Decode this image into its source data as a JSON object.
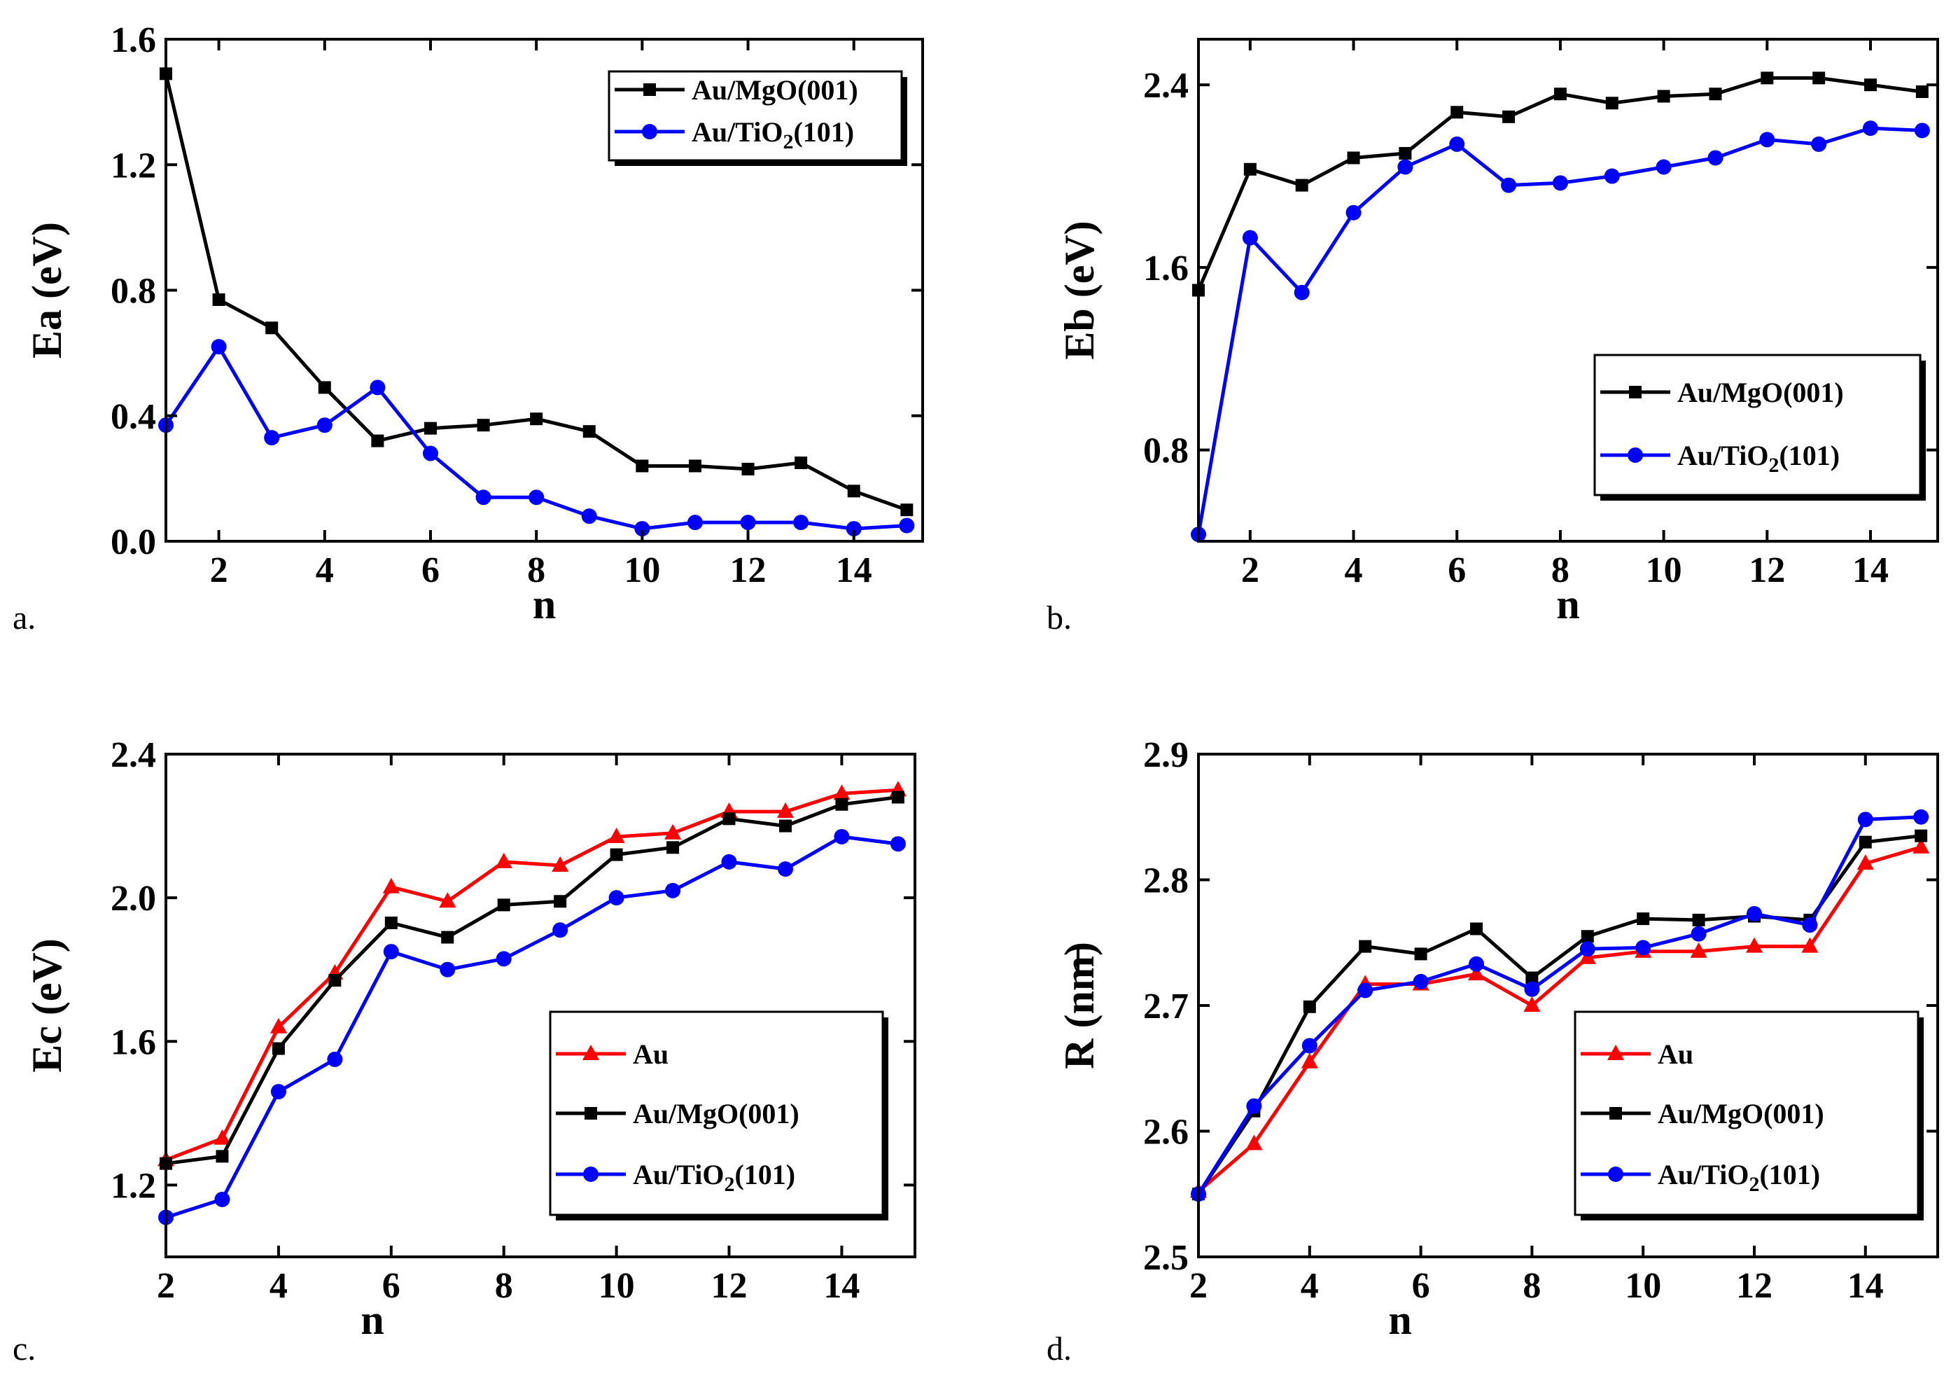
{
  "chart_data": [
    {
      "type": "line",
      "panel_label": "a.",
      "xlabel": "n",
      "ylabel": "Ea (eV)",
      "xlim": [
        1,
        15.3
      ],
      "ylim": [
        0,
        1.6
      ],
      "xticks": [
        2,
        4,
        6,
        8,
        10,
        12,
        14
      ],
      "xtick_labels": [
        "2",
        "4",
        "6",
        "8",
        "10",
        "12",
        "14"
      ],
      "yticks": [
        0.0,
        0.4,
        0.8,
        1.2,
        1.6
      ],
      "ytick_labels": [
        "0.0",
        "0.4",
        "0.8",
        "1.2",
        "1.6"
      ],
      "legend_position": "top-right",
      "series": [
        {
          "name": "Au/MgO(001)",
          "label_main": "Au/MgO(001)",
          "color": "#000000",
          "marker": "square",
          "x": [
            1,
            2,
            3,
            4,
            5,
            6,
            7,
            8,
            9,
            10,
            11,
            12,
            13,
            14,
            15
          ],
          "values": [
            1.49,
            0.77,
            0.68,
            0.49,
            0.32,
            0.36,
            0.37,
            0.39,
            0.35,
            0.24,
            0.24,
            0.23,
            0.25,
            0.16,
            0.1
          ]
        },
        {
          "name": "Au/TiO2(101)",
          "label_main": "Au/TiO",
          "label_sub": "2",
          "label_tail": "(101)",
          "color": "#0000ff",
          "marker": "circle",
          "x": [
            1,
            2,
            3,
            4,
            5,
            6,
            7,
            8,
            9,
            10,
            11,
            12,
            13,
            14,
            15
          ],
          "values": [
            0.37,
            0.62,
            0.33,
            0.37,
            0.49,
            0.28,
            0.14,
            0.14,
            0.08,
            0.04,
            0.06,
            0.06,
            0.06,
            0.04,
            0.05
          ]
        }
      ]
    },
    {
      "type": "line",
      "panel_label": "b.",
      "xlabel": "n",
      "ylabel": "Eb (eV)",
      "xlim": [
        1,
        15.3
      ],
      "ylim": [
        0.4,
        2.6
      ],
      "xticks": [
        2,
        4,
        6,
        8,
        10,
        12,
        14
      ],
      "xtick_labels": [
        "2",
        "4",
        "6",
        "8",
        "10",
        "12",
        "14"
      ],
      "yticks": [
        0.8,
        1.6,
        2.4
      ],
      "ytick_labels": [
        "0.8",
        "1.6",
        "2.4"
      ],
      "legend_position": "bottom-right",
      "series": [
        {
          "name": "Au/MgO(001)",
          "label_main": "Au/MgO(001)",
          "color": "#000000",
          "marker": "square",
          "x": [
            1,
            2,
            3,
            4,
            5,
            6,
            7,
            8,
            9,
            10,
            11,
            12,
            13,
            14,
            15
          ],
          "values": [
            1.5,
            2.03,
            1.96,
            2.08,
            2.1,
            2.28,
            2.26,
            2.36,
            2.32,
            2.35,
            2.36,
            2.43,
            2.43,
            2.4,
            2.37
          ]
        },
        {
          "name": "Au/TiO2(101)",
          "label_main": "Au/TiO",
          "label_sub": "2",
          "label_tail": "(101)",
          "color": "#0000ff",
          "marker": "circle",
          "x": [
            1,
            2,
            3,
            4,
            5,
            6,
            7,
            8,
            9,
            10,
            11,
            12,
            13,
            14,
            15
          ],
          "values": [
            0.43,
            1.73,
            1.49,
            1.84,
            2.04,
            2.14,
            1.96,
            1.97,
            2.0,
            2.04,
            2.08,
            2.16,
            2.14,
            2.21,
            2.2
          ]
        }
      ]
    },
    {
      "type": "line",
      "panel_label": "c.",
      "xlabel": "n",
      "ylabel": "Ec (eV)",
      "xlim": [
        2,
        15.3
      ],
      "ylim": [
        1.0,
        2.4
      ],
      "xticks": [
        2,
        4,
        6,
        8,
        10,
        12,
        14
      ],
      "xtick_labels": [
        "2",
        "4",
        "6",
        "8",
        "10",
        "12",
        "14"
      ],
      "yticks": [
        1.2,
        1.6,
        2.0,
        2.4
      ],
      "ytick_labels": [
        "1.2",
        "1.6",
        "2.0",
        "2.4"
      ],
      "legend_position": "bottom-right",
      "series": [
        {
          "name": "Au",
          "label_main": "Au",
          "color": "#ff0000",
          "marker": "triangle",
          "x": [
            2,
            3,
            4,
            5,
            6,
            7,
            8,
            9,
            10,
            11,
            12,
            13,
            14,
            15
          ],
          "values": [
            1.27,
            1.33,
            1.64,
            1.79,
            2.03,
            1.99,
            2.1,
            2.09,
            2.17,
            2.18,
            2.24,
            2.24,
            2.29,
            2.3
          ]
        },
        {
          "name": "Au/MgO(001)",
          "label_main": "Au/MgO(001)",
          "color": "#000000",
          "marker": "square",
          "x": [
            2,
            3,
            4,
            5,
            6,
            7,
            8,
            9,
            10,
            11,
            12,
            13,
            14,
            15
          ],
          "values": [
            1.26,
            1.28,
            1.58,
            1.77,
            1.93,
            1.89,
            1.98,
            1.99,
            2.12,
            2.14,
            2.22,
            2.2,
            2.26,
            2.28
          ]
        },
        {
          "name": "Au/TiO2(101)",
          "label_main": "Au/TiO",
          "label_sub": "2",
          "label_tail": "(101)",
          "color": "#0000ff",
          "marker": "circle",
          "x": [
            2,
            3,
            4,
            5,
            6,
            7,
            8,
            9,
            10,
            11,
            12,
            13,
            14,
            15
          ],
          "values": [
            1.11,
            1.16,
            1.46,
            1.55,
            1.85,
            1.8,
            1.83,
            1.91,
            2.0,
            2.02,
            2.1,
            2.08,
            2.17,
            2.15
          ]
        }
      ]
    },
    {
      "type": "line",
      "panel_label": "d.",
      "xlabel": "n",
      "ylabel": "R (nm)",
      "xlim": [
        2,
        15.3
      ],
      "ylim": [
        2.5,
        2.9
      ],
      "xticks": [
        2,
        4,
        6,
        8,
        10,
        12,
        14
      ],
      "xtick_labels": [
        "2",
        "4",
        "6",
        "8",
        "10",
        "12",
        "14"
      ],
      "yticks": [
        2.5,
        2.6,
        2.7,
        2.8,
        2.9
      ],
      "ytick_labels": [
        "2.5",
        "2.6",
        "2.7",
        "2.8",
        "2.9"
      ],
      "legend_position": "bottom-right",
      "series": [
        {
          "name": "Au",
          "label_main": "Au",
          "color": "#ff0000",
          "marker": "triangle",
          "x": [
            2,
            3,
            4,
            5,
            6,
            7,
            8,
            9,
            10,
            11,
            12,
            13,
            14,
            15
          ],
          "values": [
            2.552,
            2.59,
            2.655,
            2.717,
            2.717,
            2.725,
            2.7,
            2.738,
            2.743,
            2.743,
            2.747,
            2.747,
            2.813,
            2.826
          ]
        },
        {
          "name": "Au/MgO(001)",
          "label_main": "Au/MgO(001)",
          "color": "#000000",
          "marker": "square",
          "x": [
            2,
            3,
            4,
            5,
            6,
            7,
            8,
            9,
            10,
            11,
            12,
            13,
            14,
            15
          ],
          "values": [
            2.55,
            2.616,
            2.699,
            2.747,
            2.741,
            2.761,
            2.722,
            2.755,
            2.769,
            2.768,
            2.771,
            2.768,
            2.83,
            2.835
          ]
        },
        {
          "name": "Au/TiO2(101)",
          "label_main": "Au/TiO",
          "label_sub": "2",
          "label_tail": "(101)",
          "color": "#0000ff",
          "marker": "circle",
          "x": [
            2,
            3,
            4,
            5,
            6,
            7,
            8,
            9,
            10,
            11,
            12,
            13,
            14,
            15
          ],
          "values": [
            2.55,
            2.62,
            2.668,
            2.712,
            2.719,
            2.733,
            2.713,
            2.745,
            2.746,
            2.757,
            2.773,
            2.764,
            2.848,
            2.85
          ]
        }
      ]
    }
  ]
}
